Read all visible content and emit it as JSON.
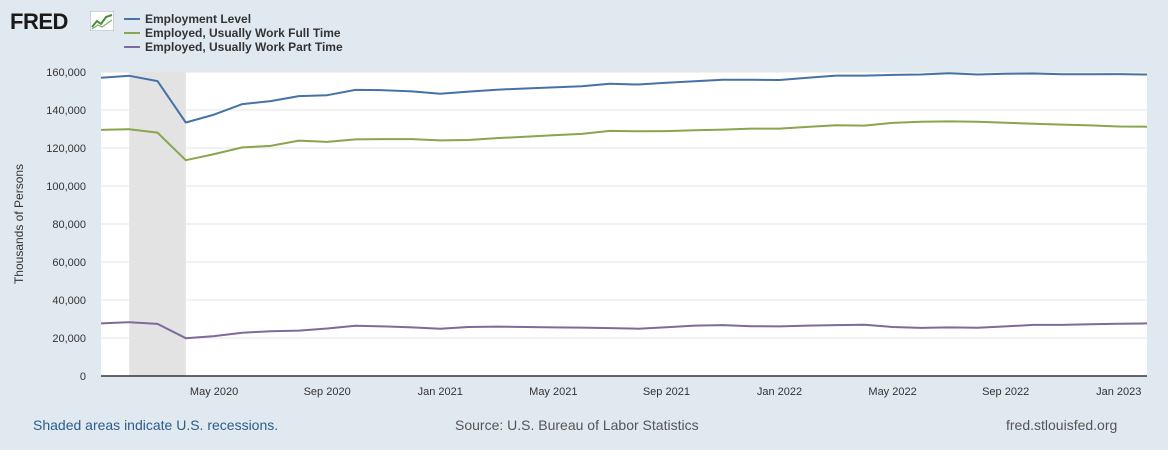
{
  "header": {
    "logo_text": "FRED",
    "logo_icon": "fred-chart-icon"
  },
  "footer": {
    "recession_note": "Shaded areas indicate U.S. recessions.",
    "source": "Source: U.S. Bureau of Labor Statistics",
    "site": "fred.stlouisfed.org"
  },
  "chart_data": {
    "type": "line",
    "title": "",
    "xlabel": "",
    "ylabel": "Thousands of Persons",
    "ylim": [
      0,
      160000
    ],
    "yticks": [
      0,
      20000,
      40000,
      60000,
      80000,
      100000,
      120000,
      140000,
      160000
    ],
    "ytick_labels": [
      "0",
      "20,000",
      "40,000",
      "60,000",
      "80,000",
      "100,000",
      "120,000",
      "140,000",
      "160,000"
    ],
    "x": [
      "2020-01",
      "2020-02",
      "2020-03",
      "2020-04",
      "2020-05",
      "2020-06",
      "2020-07",
      "2020-08",
      "2020-09",
      "2020-10",
      "2020-11",
      "2020-12",
      "2021-01",
      "2021-02",
      "2021-03",
      "2021-04",
      "2021-05",
      "2021-06",
      "2021-07",
      "2021-08",
      "2021-09",
      "2021-10",
      "2021-11",
      "2021-12",
      "2022-01",
      "2022-02",
      "2022-03",
      "2022-04",
      "2022-05",
      "2022-06",
      "2022-07",
      "2022-08",
      "2022-09",
      "2022-10",
      "2022-11",
      "2022-12",
      "2023-01",
      "2023-02"
    ],
    "xtick_positions": [
      4,
      8,
      12,
      16,
      20,
      24,
      28,
      32,
      36
    ],
    "xtick_labels": [
      "May 2020",
      "Sep 2020",
      "Jan 2021",
      "May 2021",
      "Sep 2021",
      "Jan 2022",
      "May 2022",
      "Sep 2022",
      "Jan 2023"
    ],
    "recession": {
      "start": 1,
      "end": 3
    },
    "grid": true,
    "legend_position": "top-left",
    "series": [
      {
        "name": "Employment Level",
        "color": "#4572a7",
        "values": [
          157000,
          158000,
          155200,
          133400,
          137600,
          143100,
          144700,
          147300,
          147800,
          150600,
          150400,
          149800,
          148600,
          149700,
          150700,
          151300,
          151900,
          152500,
          153800,
          153400,
          154300,
          155100,
          155900,
          155900,
          155800,
          157000,
          158100,
          158100,
          158500,
          158700,
          159300,
          158700,
          159100,
          159200,
          158800,
          158800,
          158900,
          158700
        ]
      },
      {
        "name": "Employed, Usually Work Full Time",
        "color": "#89a54e",
        "values": [
          129500,
          129900,
          128100,
          113600,
          116800,
          120300,
          121100,
          123900,
          123200,
          124500,
          124700,
          124700,
          124000,
          124200,
          125200,
          125900,
          126700,
          127400,
          129000,
          128800,
          128900,
          129300,
          129700,
          130200,
          130200,
          131100,
          132000,
          131800,
          133200,
          133800,
          134000,
          133800,
          133300,
          132800,
          132300,
          131900,
          131300,
          131200
        ]
      },
      {
        "name": "Employed, Usually Work Part Time",
        "color": "#80699b",
        "values": [
          27700,
          28300,
          27400,
          19900,
          21000,
          22800,
          23600,
          23900,
          25000,
          26400,
          26100,
          25600,
          24900,
          25800,
          26000,
          25800,
          25600,
          25500,
          25200,
          24900,
          25700,
          26500,
          26800,
          26200,
          26100,
          26500,
          26800,
          27000,
          25800,
          25300,
          25600,
          25400,
          26100,
          26900,
          26900,
          27200,
          27500,
          27700
        ]
      }
    ]
  }
}
